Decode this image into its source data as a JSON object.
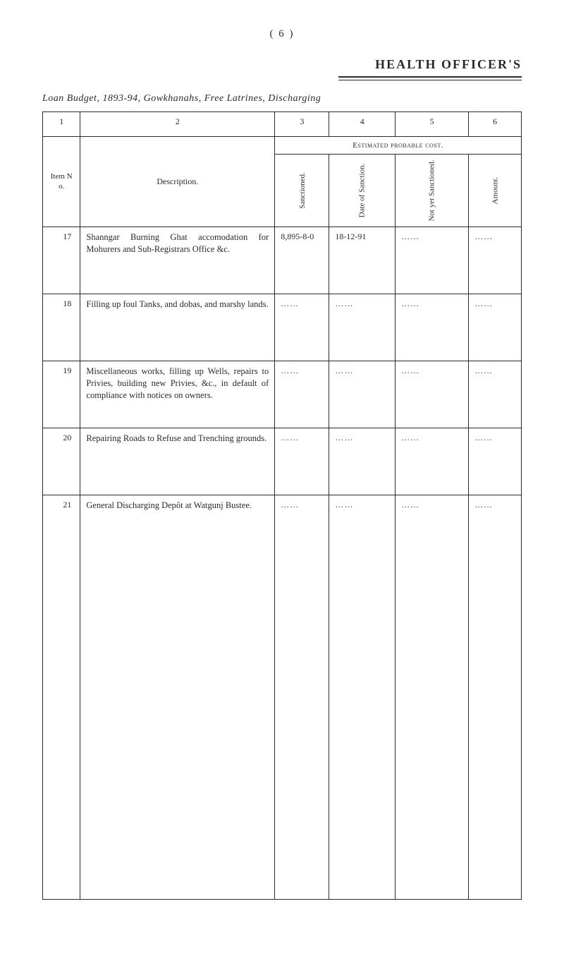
{
  "page_number": "(   6  )",
  "header_title": "HEALTH OFFICER'S",
  "subtitle": "Loan Budget, 1893-94, Gowkhanahs, Free Latrines, Discharging",
  "columns": {
    "num1": "1",
    "num2": "2",
    "num3": "3",
    "num4": "4",
    "num5": "5",
    "num6": "6",
    "item_no": "Item N o.",
    "description": "Description.",
    "estimated": "Estimated probable cost.",
    "sanctioned": "Sanctioned.",
    "date_of": "Date of Sanction.",
    "not_yet": "Not yet Sanctioned.",
    "amount": "Amount."
  },
  "rows": [
    {
      "no": "17",
      "desc": "Shanngar Burning Ghat accomodation for Mohurers and Sub-Registrars Office &c.",
      "sanctioned": "8,895-8-0",
      "date": "18-12-91",
      "notyet": "……",
      "amount": "……"
    },
    {
      "no": "18",
      "desc": "Filling up foul Tanks, and dobas, and marshy lands.",
      "sanctioned": "……",
      "date": "……",
      "notyet": "……",
      "amount": "……"
    },
    {
      "no": "19",
      "desc": "Miscellaneous works, filling up Wells, repairs to Privies, building new Privies, &c., in default of compliance with notices on owners.",
      "sanctioned": "……",
      "date": "……",
      "notyet": "……",
      "amount": "……"
    },
    {
      "no": "20",
      "desc": "Repairing Roads to Refuse and Trenching grounds.",
      "sanctioned": "……",
      "date": "……",
      "notyet": "……",
      "amount": "……"
    },
    {
      "no": "21",
      "desc": "General Discharging Depôt at Watgunj Bustee.",
      "sanctioned": "……",
      "date": "……",
      "notyet": "……",
      "amount": "……"
    }
  ]
}
